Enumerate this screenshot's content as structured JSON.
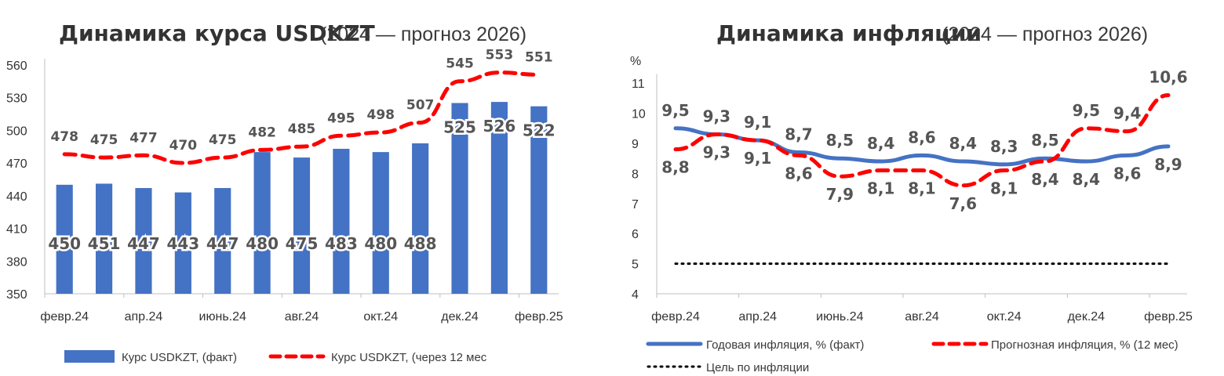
{
  "chart_data": [
    {
      "type": "bar",
      "title": "Динамика курса USDKZT",
      "subtitle": "(2024 — прогноз 2026)",
      "x_tick_labels": [
        "февр.24",
        "апр.24",
        "июнь.24",
        "авг.24",
        "окт.24",
        "дек.24",
        "февр.25"
      ],
      "y_tick_labels": [
        "350",
        "380",
        "410",
        "440",
        "470",
        "500",
        "530",
        "560"
      ],
      "ylim": [
        350,
        580
      ],
      "series": [
        {
          "name": "Курс USDKZT, (факт)",
          "kind": "bar",
          "color": "#4472C4",
          "values": [
            450,
            451,
            447,
            443,
            447,
            480,
            475,
            483,
            480,
            488,
            525,
            526,
            522
          ]
        },
        {
          "name": "Курс USDKZT, (через 12 мес",
          "kind": "line-dashed",
          "color": "#FF0000",
          "values": [
            478,
            475,
            477,
            470,
            475,
            482,
            485,
            495,
            498,
            507,
            545,
            553,
            551
          ]
        }
      ],
      "legend": [
        "Курс USDKZT, (факт)",
        "Курс USDKZT, (через 12 мес"
      ],
      "legend_position": "bottom"
    },
    {
      "type": "line",
      "title": "Динамика инфляции",
      "subtitle": "(2024 — прогноз 2026)",
      "ylabel": "%",
      "x_tick_labels": [
        "февр.24",
        "апр.24",
        "июнь.24",
        "авг.24",
        "окт.24",
        "дек.24",
        "февр.25"
      ],
      "y_tick_labels": [
        "4",
        "5",
        "6",
        "7",
        "8",
        "9",
        "10",
        "11"
      ],
      "ylim": [
        4,
        11.5
      ],
      "series": [
        {
          "name": "Годовая инфляция, % (факт)",
          "kind": "line",
          "color": "#4472C4",
          "values": [
            9.5,
            9.3,
            9.1,
            8.7,
            8.5,
            8.4,
            8.6,
            8.4,
            8.3,
            8.5,
            8.4,
            8.6,
            8.9
          ],
          "labels": [
            "9,5",
            "9,3",
            "9,1",
            "8,7",
            "8,5",
            "8,4",
            "8,6",
            "8,4",
            "8,3",
            "8,5",
            "8,4",
            "8,6",
            "8,9"
          ]
        },
        {
          "name": "Прогнозная инфляция, % (12 мес)",
          "kind": "line-dashed",
          "color": "#FF0000",
          "values": [
            8.8,
            9.3,
            9.1,
            8.6,
            7.9,
            8.1,
            8.1,
            7.6,
            8.1,
            8.4,
            9.5,
            9.4,
            10.6
          ],
          "labels": [
            "8,8",
            "9,3",
            "9,1",
            "8,6",
            "7,9",
            "8,1",
            "8,1",
            "7,6",
            "8,1",
            "8,4",
            "9,5",
            "9,4",
            "10,6"
          ]
        },
        {
          "name": "Цель по инфляции",
          "kind": "line-dotted",
          "color": "#000000",
          "values": [
            5,
            5,
            5,
            5,
            5,
            5,
            5,
            5,
            5,
            5,
            5,
            5,
            5
          ]
        }
      ],
      "legend": [
        "Годовая инфляция, % (факт)",
        "Прогнозная инфляция, % (12 мес)",
        "Цель по инфляции"
      ],
      "legend_position": "bottom"
    }
  ]
}
